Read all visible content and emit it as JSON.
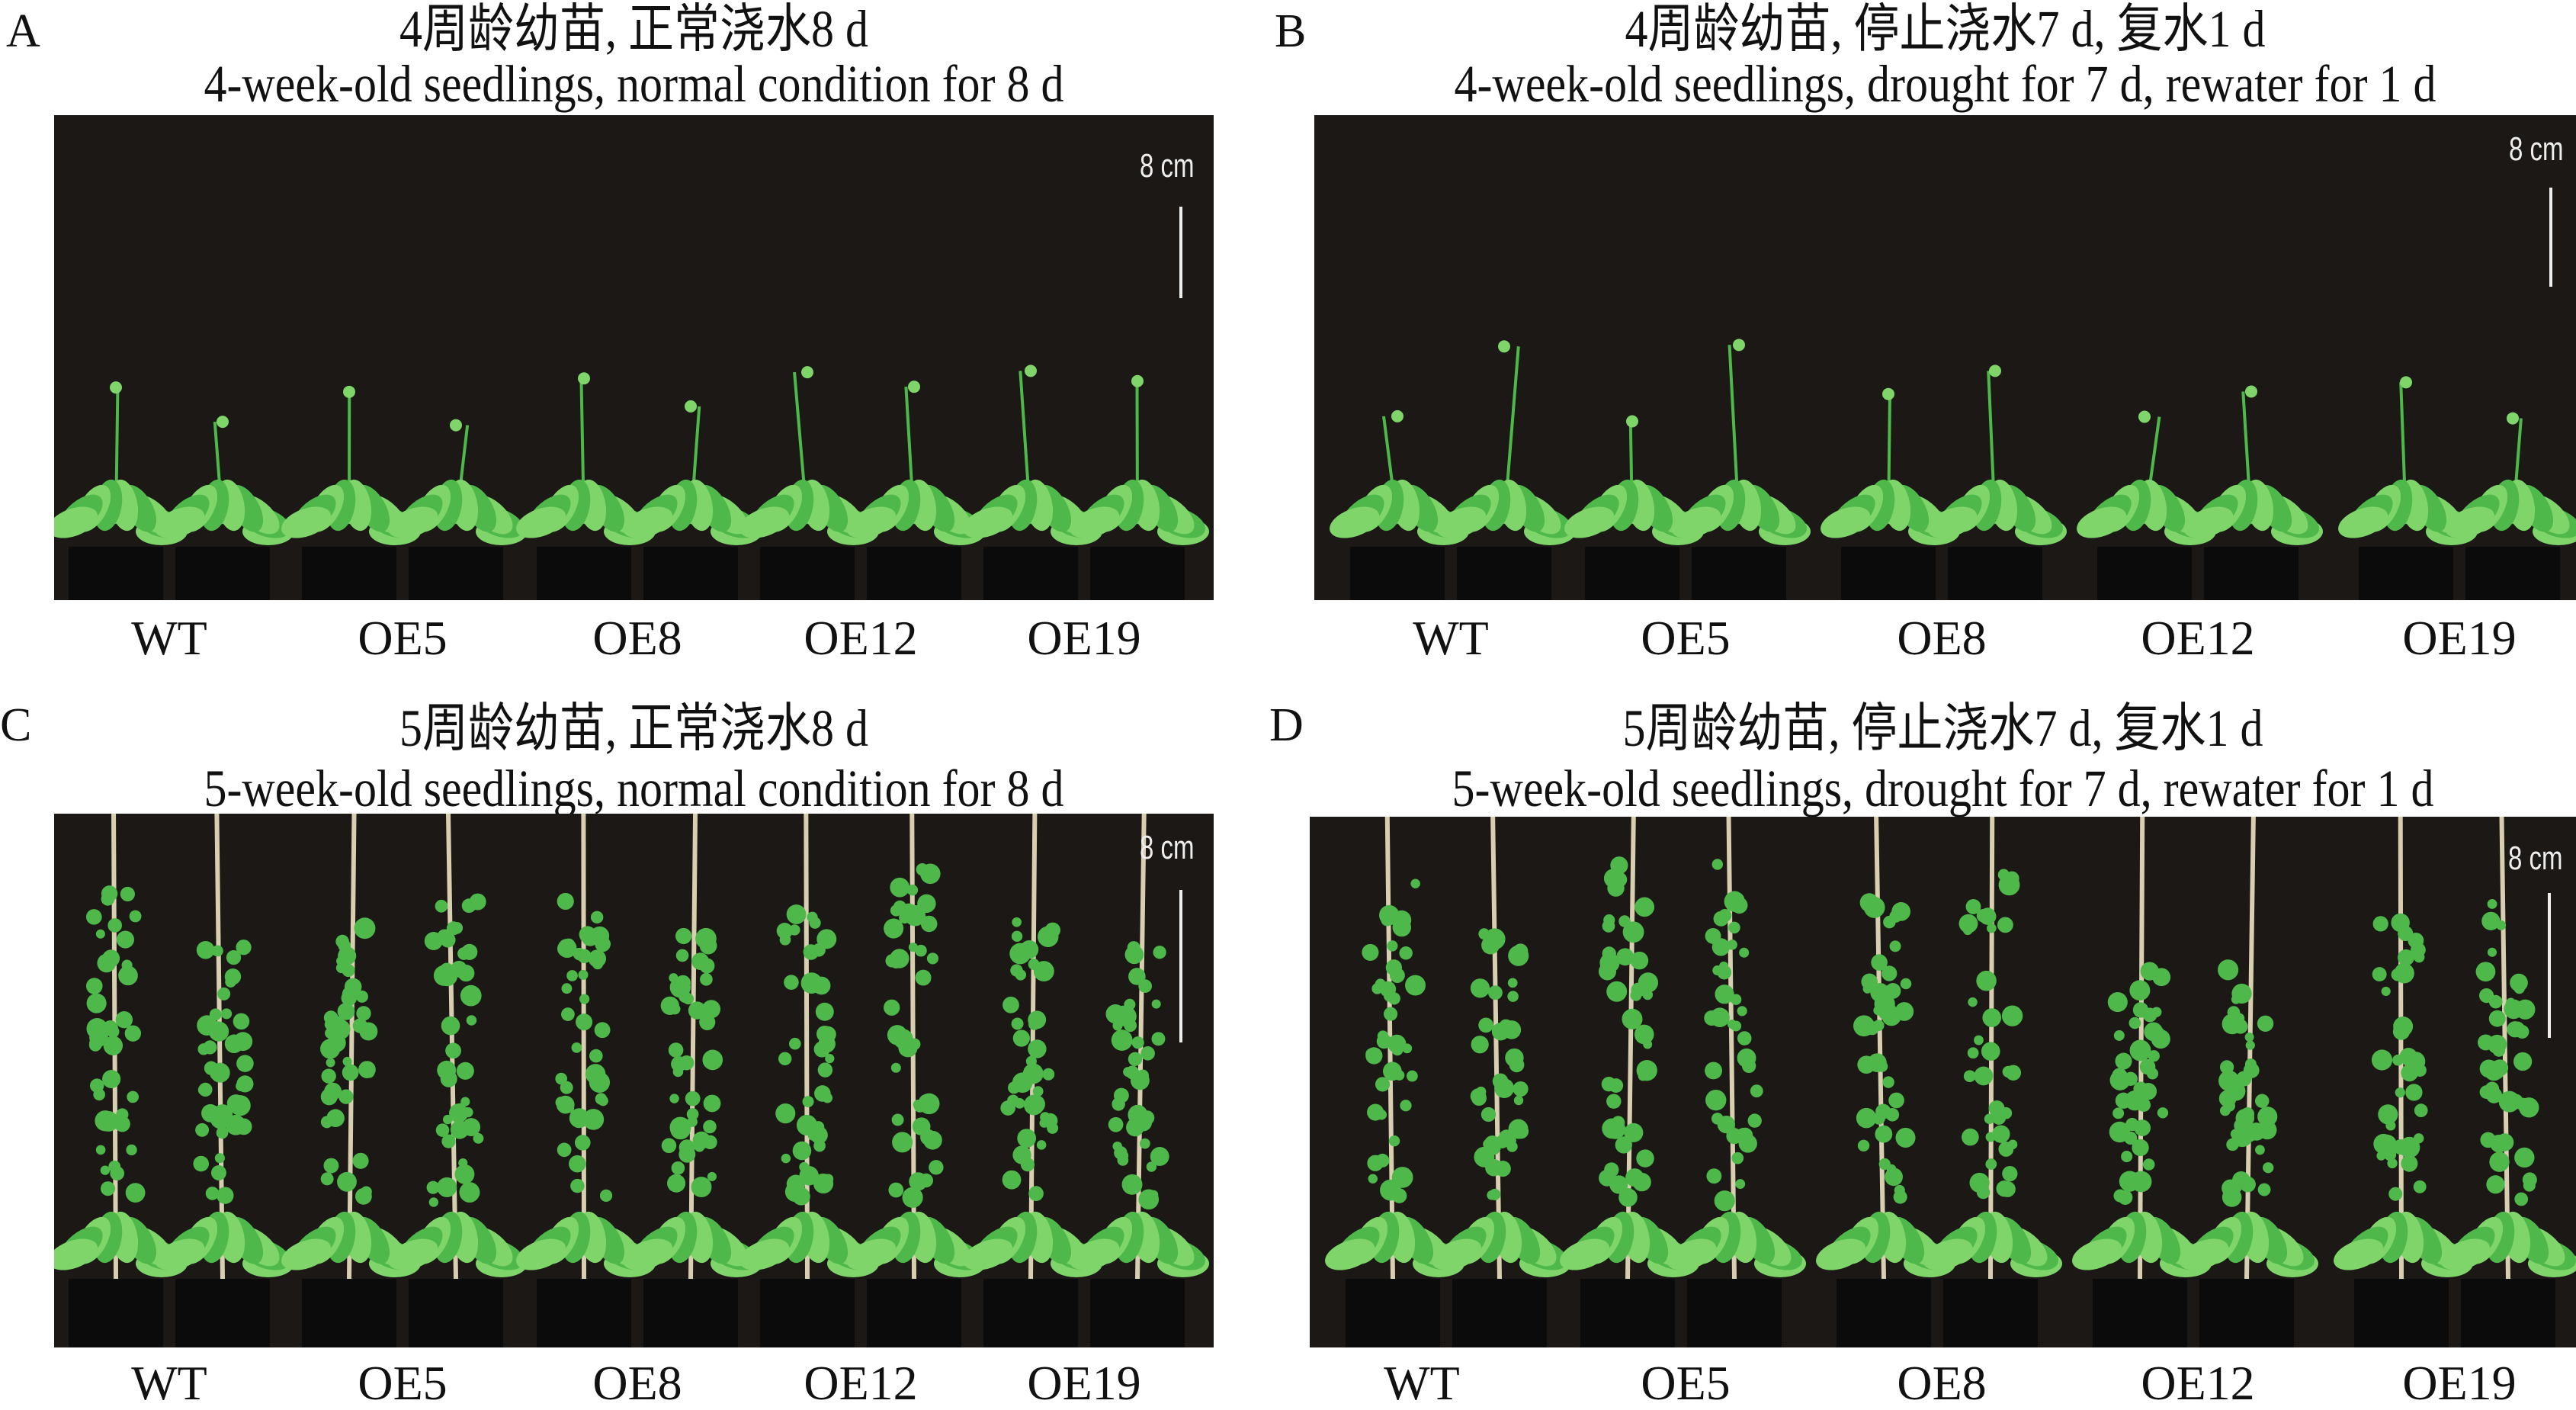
{
  "panels": [
    {
      "letter": "A",
      "title_cn": "4周龄幼苗, 正常浇水8 d",
      "title_en": "4-week-old seedlings, normal condition for 8 d",
      "scale": "8 cm",
      "stage": "young",
      "genotypes": [
        "WT",
        "OE5",
        "OE8",
        "OE12",
        "OE19"
      ]
    },
    {
      "letter": "B",
      "title_cn": "4周龄幼苗, 停止浇水7 d, 复水1 d",
      "title_en": "4-week-old seedlings, drought for 7 d, rewater for 1 d",
      "scale": "8 cm",
      "stage": "young",
      "genotypes": [
        "WT",
        "OE5",
        "OE8",
        "OE12",
        "OE19"
      ]
    },
    {
      "letter": "C",
      "title_cn": "5周龄幼苗, 正常浇水8 d",
      "title_en": "5-week-old seedlings, normal condition for 8 d",
      "scale": "8 cm",
      "stage": "old",
      "genotypes": [
        "WT",
        "OE5",
        "OE8",
        "OE12",
        "OE19"
      ]
    },
    {
      "letter": "D",
      "title_cn": "5周龄幼苗, 停止浇水7 d, 复水1 d",
      "title_en": "5-week-old seedlings, drought for 7 d, rewater for 1 d",
      "scale": "8 cm",
      "stage": "old",
      "genotypes": [
        "WT",
        "OE5",
        "OE8",
        "OE12",
        "OE19"
      ]
    }
  ],
  "colors": {
    "background": "#1b1816",
    "leaf": "#4fb84a",
    "leaf_light": "#7fd56a",
    "stake": "#d8cfb0"
  }
}
